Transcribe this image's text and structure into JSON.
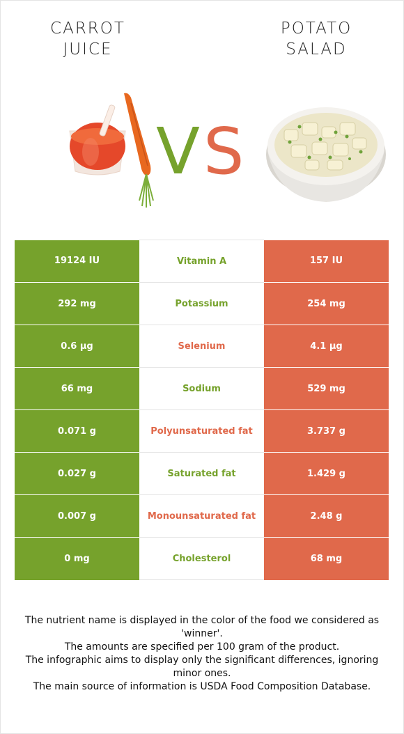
{
  "left_food": {
    "title": "CARROT\nJUICE",
    "color": "#76a22c"
  },
  "right_food": {
    "title": "POTATO\nSALAD",
    "color": "#e0694b"
  },
  "vs": {
    "v": "V",
    "s": "S"
  },
  "rows": [
    {
      "left": "19124 IU",
      "name": "Vitamin A",
      "right": "157 IU",
      "winner": "left"
    },
    {
      "left": "292 mg",
      "name": "Potassium",
      "right": "254 mg",
      "winner": "left"
    },
    {
      "left": "0.6 µg",
      "name": "Selenium",
      "right": "4.1 µg",
      "winner": "right"
    },
    {
      "left": "66 mg",
      "name": "Sodium",
      "right": "529 mg",
      "winner": "left"
    },
    {
      "left": "0.071 g",
      "name": "Polyunsaturated fat",
      "right": "3.737 g",
      "winner": "right"
    },
    {
      "left": "0.027 g",
      "name": "Saturated fat",
      "right": "1.429 g",
      "winner": "left"
    },
    {
      "left": "0.007 g",
      "name": "Monounsaturated fat",
      "right": "2.48 g",
      "winner": "right"
    },
    {
      "left": "0 mg",
      "name": "Cholesterol",
      "right": "68 mg",
      "winner": "left"
    }
  ],
  "footnote": [
    "The nutrient name is displayed in the color of the food we considered as 'winner'.",
    "The amounts are specified per 100 gram of the product.",
    "The infographic aims to display only the significant differences, ignoring minor ones.",
    "The main source of information is USDA Food Composition Database."
  ]
}
